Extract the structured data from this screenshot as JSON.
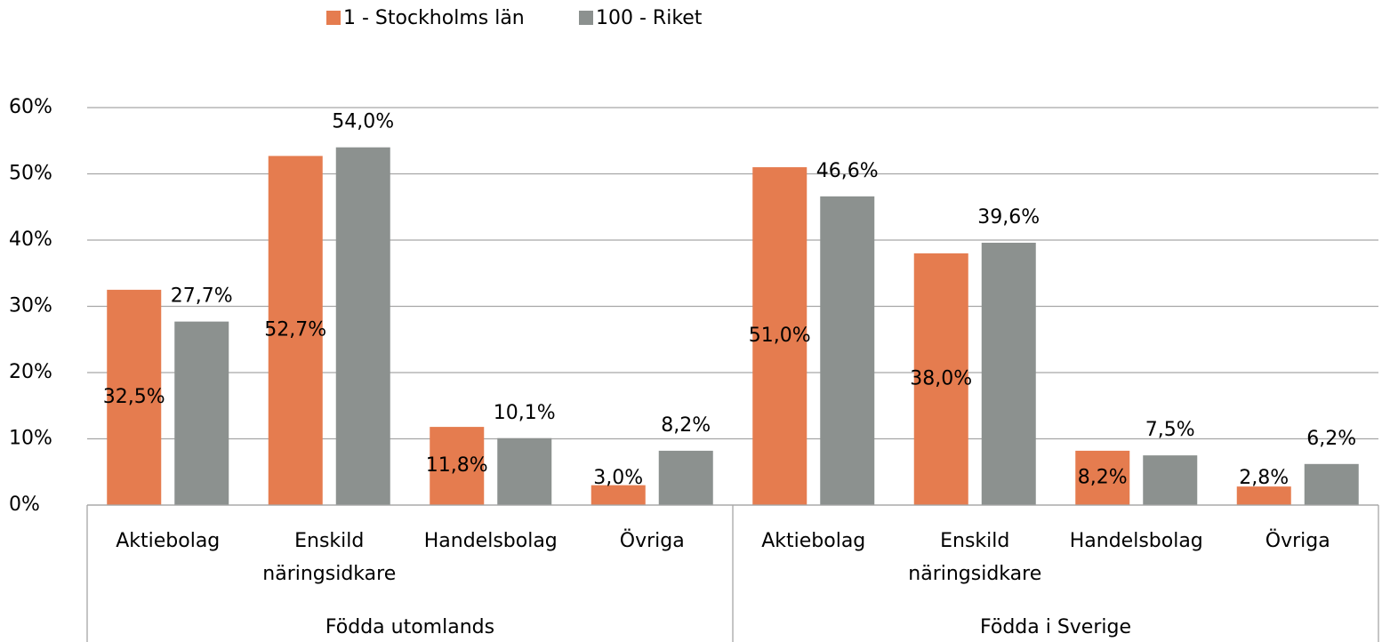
{
  "chart_data": {
    "type": "bar",
    "categories": [
      "Aktiebolag",
      "Enskild näringsidkare",
      "Handelsbolag",
      "Övriga",
      "Aktiebolag",
      "Enskild näringsidkare",
      "Handelsbolag",
      "Övriga"
    ],
    "groups": [
      {
        "label": "Födda utomlands",
        "size": 4
      },
      {
        "label": "Födda i Sverige",
        "size": 4
      }
    ],
    "series": [
      {
        "name": "1 - Stockholms län",
        "color": "#e57c4f",
        "values": [
          32.5,
          52.7,
          11.8,
          3.0,
          51.0,
          38.0,
          8.2,
          2.8
        ],
        "value_labels": [
          "32,5%",
          "52,7%",
          "11,8%",
          "3,0%",
          "51,0%",
          "38,0%",
          "8,2%",
          "2,8%"
        ]
      },
      {
        "name": "100 - Riket",
        "color": "#8c918f",
        "values": [
          27.7,
          54.0,
          10.1,
          8.2,
          46.6,
          39.6,
          7.5,
          6.2
        ],
        "value_labels": [
          "27,7%",
          "54,0%",
          "10,1%",
          "8,2%",
          "46,6%",
          "39,6%",
          "7,5%",
          "6,2%"
        ]
      }
    ],
    "ylim": [
      0,
      60
    ],
    "yticks": [
      {
        "value": 0,
        "label": "0%"
      },
      {
        "value": 10,
        "label": "10%"
      },
      {
        "value": 20,
        "label": "20%"
      },
      {
        "value": 30,
        "label": "30%"
      },
      {
        "value": 40,
        "label": "40%"
      },
      {
        "value": 50,
        "label": "50%"
      },
      {
        "value": 60,
        "label": "60%"
      }
    ],
    "grid": true,
    "legend": "top"
  }
}
